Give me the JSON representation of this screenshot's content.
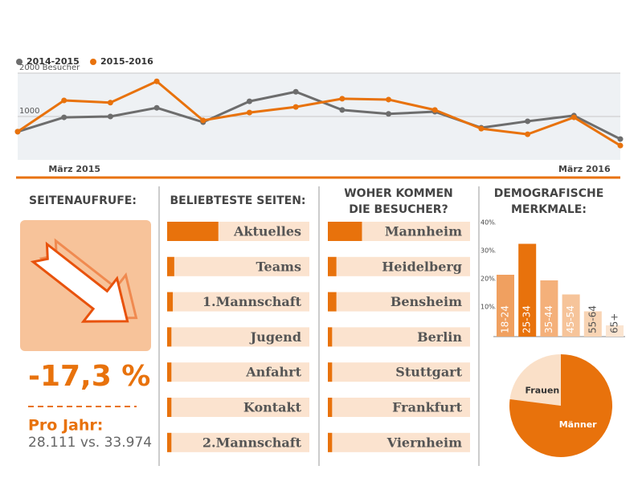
{
  "stats": {
    "title": "SEITENAUFRUFE:",
    "change": "-17,3 %",
    "per_year": "Pro Jahr:",
    "comparison": "28.111 vs. 33.974"
  },
  "chart_data": [
    {
      "type": "line",
      "categories": [
        null,
        "März 2015",
        null,
        null,
        null,
        null,
        null,
        null,
        null,
        null,
        null,
        null,
        "März 2016",
        null
      ],
      "series": [
        {
          "name": "2014-2015",
          "color": "#6d6d6d",
          "values": [
            650,
            980,
            1000,
            1200,
            870,
            1350,
            1570,
            1150,
            1060,
            1110,
            740,
            890,
            1020,
            480
          ]
        },
        {
          "name": "2015-2016",
          "color": "#e8720c",
          "values": [
            650,
            1370,
            1320,
            1810,
            910,
            1090,
            1220,
            1410,
            1390,
            1150,
            720,
            590,
            980,
            330
          ]
        }
      ],
      "ylim": [
        0,
        2000
      ],
      "yticks": [
        1000,
        {
          "value": 2000,
          "label": "2000 Besucher"
        }
      ],
      "grid": true,
      "legend": "top-left"
    },
    {
      "type": "bar",
      "orientation": "horizontal",
      "title": [
        "BELIEBTESTE SEITEN:"
      ],
      "categories": [
        "Aktuelles",
        "Teams",
        "1.Mannschaft",
        "Jugend",
        "Anfahrt",
        "Kontakt",
        "2.Mannschaft"
      ],
      "values": [
        36,
        5,
        4,
        3,
        3,
        3,
        3
      ],
      "xlim": [
        0,
        100
      ],
      "color": "#e8720c",
      "track_color": "#fbe3cf"
    },
    {
      "type": "bar",
      "orientation": "horizontal",
      "title": [
        "WOHER KOMMEN",
        "DIE BESUCHER?"
      ],
      "categories": [
        "Mannheim",
        "Heidelberg",
        "Bensheim",
        "Berlin",
        "Stuttgart",
        "Frankfurt",
        "Viernheim"
      ],
      "values": [
        24,
        6,
        6,
        3,
        3,
        3,
        3
      ],
      "xlim": [
        0,
        100
      ],
      "color": "#e8720c",
      "track_color": "#fbe3cf"
    },
    {
      "type": "bar",
      "orientation": "vertical",
      "title": [
        "DEMOGRAFISCHE",
        "MERKMALE:"
      ],
      "categories": [
        "18-24",
        "25-34",
        "35-44",
        "45-54",
        "55-64",
        "65+"
      ],
      "values": [
        22,
        33,
        20,
        15,
        9,
        4
      ],
      "colors": [
        "#f0a060",
        "#e8720c",
        "#f4b07a",
        "#f6c49a",
        "#f8d4b4",
        "#fae4d0"
      ],
      "ylim": [
        0,
        40
      ],
      "yticks": [
        {
          "value": 10,
          "label": "10%"
        },
        {
          "value": 20,
          "label": "20%"
        },
        {
          "value": 30,
          "label": "30%"
        },
        {
          "value": 40,
          "label": "40%"
        }
      ]
    },
    {
      "type": "pie",
      "categories": [
        "Frauen",
        "Männer"
      ],
      "values": [
        23,
        77
      ],
      "colors": [
        "#fae0c8",
        "#e8720c"
      ]
    }
  ]
}
